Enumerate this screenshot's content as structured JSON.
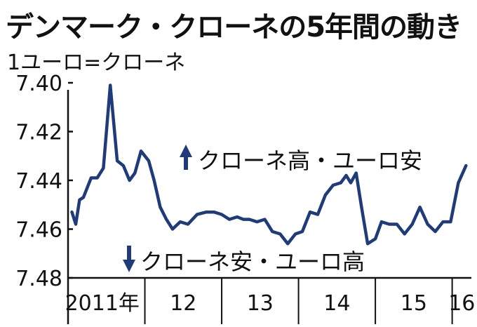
{
  "chart_data": {
    "type": "line",
    "title": "デンマーク・クローネの5年間の動き",
    "subtitle": "1ユーロ=クローネ",
    "xlabel": "",
    "ylabel": "",
    "y_inverted": true,
    "ylim": [
      7.48,
      7.4
    ],
    "y_ticks": [
      "7.40",
      "7.42",
      "7.44",
      "7.46",
      "7.48"
    ],
    "x_ticks": [
      "2011年",
      "12",
      "13",
      "14",
      "15",
      "16"
    ],
    "xlim": [
      2011.0,
      2016.25
    ],
    "grid": false,
    "annotations": {
      "up": "クローネ高・ユーロ安",
      "down": "クローネ安・ユーロ高"
    },
    "colors": {
      "line": "#1f3b7a",
      "arrow": "#1f3b7a",
      "axis": "#111111"
    },
    "series": [
      {
        "x": [
          2011.05,
          2011.1,
          2011.15,
          2011.2,
          2011.3,
          2011.38,
          2011.46,
          2011.55,
          2011.64,
          2011.72,
          2011.8,
          2011.87,
          2011.95,
          2012.05,
          2012.12,
          2012.2,
          2012.28,
          2012.36,
          2012.46,
          2012.56,
          2012.68,
          2012.8,
          2012.9,
          2013.0,
          2013.1,
          2013.2,
          2013.28,
          2013.36,
          2013.46,
          2013.56,
          2013.66,
          2013.76,
          2013.86,
          2013.96,
          2014.05,
          2014.15,
          2014.25,
          2014.35,
          2014.45,
          2014.55,
          2014.62,
          2014.68,
          2014.75,
          2014.82,
          2014.9,
          2015.0,
          2015.08,
          2015.18,
          2015.28,
          2015.38,
          2015.48,
          2015.58,
          2015.68,
          2015.78,
          2015.88,
          2015.98,
          2016.08,
          2016.18
        ],
        "values": [
          7.453,
          7.458,
          7.448,
          7.447,
          7.439,
          7.439,
          7.435,
          7.401,
          7.432,
          7.434,
          7.44,
          7.437,
          7.428,
          7.432,
          7.44,
          7.451,
          7.456,
          7.46,
          7.457,
          7.458,
          7.454,
          7.453,
          7.453,
          7.454,
          7.456,
          7.455,
          7.456,
          7.456,
          7.457,
          7.456,
          7.461,
          7.462,
          7.466,
          7.462,
          7.461,
          7.453,
          7.454,
          7.446,
          7.442,
          7.441,
          7.438,
          7.441,
          7.437,
          7.451,
          7.466,
          7.464,
          7.457,
          7.458,
          7.458,
          7.462,
          7.458,
          7.451,
          7.458,
          7.461,
          7.457,
          7.457,
          7.441,
          7.434
        ]
      }
    ]
  }
}
